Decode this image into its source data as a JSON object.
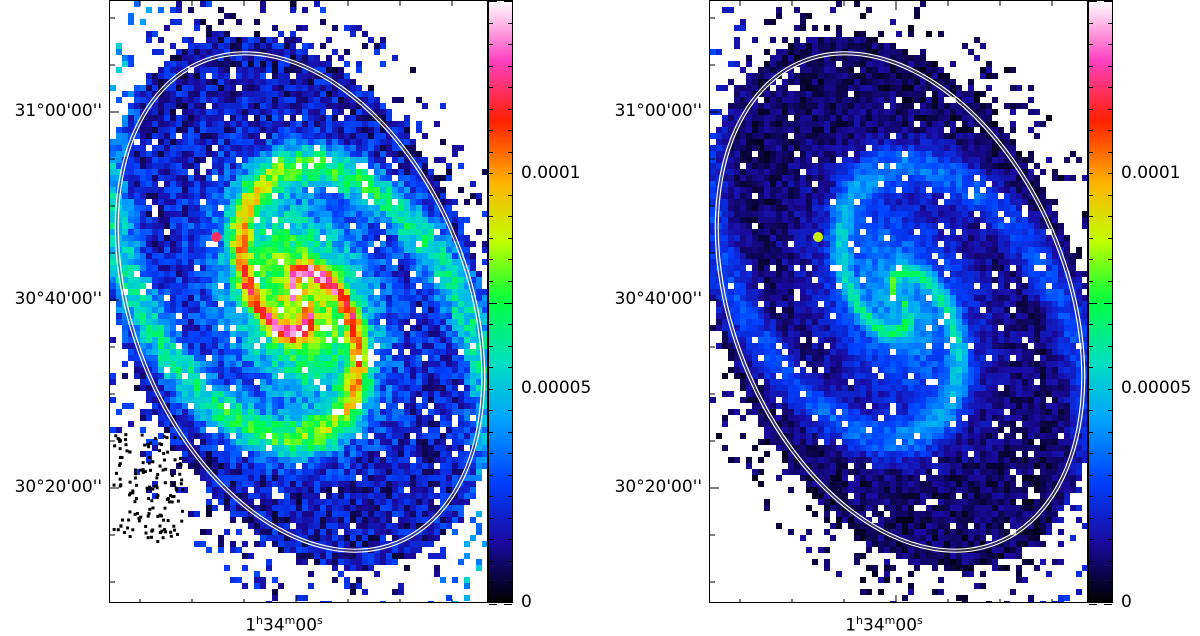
{
  "panels": [
    {
      "id": "left",
      "y_tick_labels": [
        "31°00'00''",
        "30°40'00''",
        "30°20'00''"
      ],
      "x_tick_label": {
        "h": "1",
        "h_unit": "h",
        "m": "34",
        "m_unit": "m",
        "s": "00",
        "s_unit": "s"
      },
      "colorbar_labels": [
        "0.0001",
        "0.00005",
        "0"
      ],
      "colorbar_values": [
        0.0001,
        5e-05,
        0
      ],
      "intensity_scale": 1.0
    },
    {
      "id": "right",
      "y_tick_labels": [
        "31°00'00''",
        "30°40'00''",
        "30°20'00''"
      ],
      "x_tick_label": {
        "h": "1",
        "h_unit": "h",
        "m": "34",
        "m_unit": "m",
        "s": "00",
        "s_unit": "s"
      },
      "colorbar_labels": [
        "0.0001",
        "0.00005",
        "0"
      ],
      "colorbar_values": [
        0.0001,
        5e-05,
        0
      ],
      "intensity_scale": 0.55
    }
  ],
  "colormap": {
    "name": "rainbow",
    "stops": [
      "#000000",
      "#1a0aa0",
      "#0040ff",
      "#00a0ff",
      "#00e0c0",
      "#00ff40",
      "#c0ff00",
      "#ffb000",
      "#ff2000",
      "#ff40c0",
      "#ffffff"
    ]
  }
}
